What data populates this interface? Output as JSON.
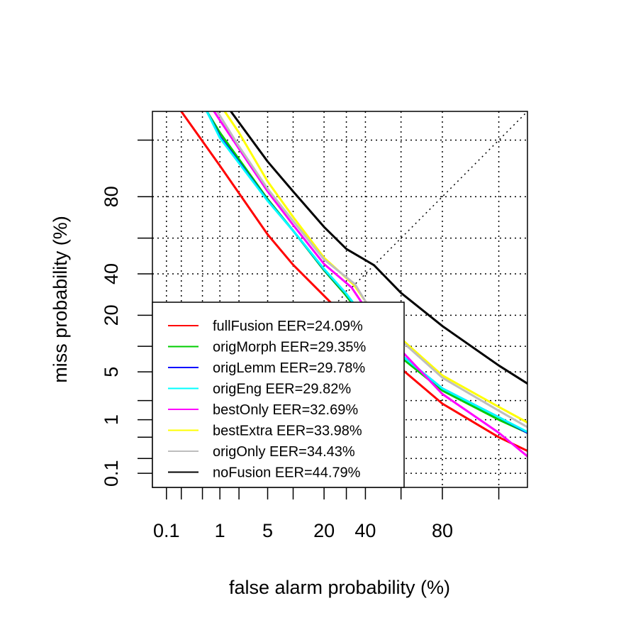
{
  "chart_data": {
    "type": "line",
    "title": "",
    "xlabel": "false alarm probability (%)",
    "ylabel": "miss probability (%)",
    "x_scale": "probit",
    "y_scale": "probit",
    "xlim": [
      0.05,
      98
    ],
    "ylim": [
      0.05,
      98
    ],
    "x_ticks": [
      0.1,
      1,
      5,
      20,
      40,
      80
    ],
    "y_ticks": [
      0.1,
      1,
      5,
      20,
      40,
      80
    ],
    "x_gridlines": [
      0.1,
      0.2,
      0.5,
      1,
      2,
      5,
      10,
      20,
      30,
      40,
      60,
      80,
      95
    ],
    "y_gridlines": [
      0.1,
      0.2,
      0.5,
      1,
      2,
      5,
      10,
      20,
      40,
      60,
      80,
      95
    ],
    "grid": true,
    "eer_diagonal": true,
    "legend_position": "bottom-left",
    "series": [
      {
        "name": "fullFusion EER=24.09%",
        "color": "#ff0000",
        "points": [
          [
            0.2,
            98
          ],
          [
            1,
            90
          ],
          [
            5,
            62
          ],
          [
            10,
            45
          ],
          [
            24.09,
            24.09
          ],
          [
            40,
            13
          ],
          [
            60,
            5.5
          ],
          [
            80,
            1.8
          ],
          [
            95,
            0.5
          ],
          [
            98,
            0.28
          ]
        ]
      },
      {
        "name": "origMorph EER=29.35%",
        "color": "#00cd00",
        "points": [
          [
            0.6,
            98
          ],
          [
            1,
            96
          ],
          [
            5,
            79
          ],
          [
            10,
            64
          ],
          [
            20,
            42
          ],
          [
            29.35,
            29.35
          ],
          [
            40,
            18
          ],
          [
            60,
            7.5
          ],
          [
            80,
            2.8
          ],
          [
            95,
            1
          ],
          [
            98,
            0.6
          ]
        ]
      },
      {
        "name": "origLemm EER=29.78%",
        "color": "#0000ff",
        "points": [
          [
            0.6,
            98
          ],
          [
            1,
            95.5
          ],
          [
            5,
            78.5
          ],
          [
            10,
            64
          ],
          [
            20,
            42.5
          ],
          [
            29.78,
            29.78
          ],
          [
            40,
            18.5
          ],
          [
            60,
            8
          ],
          [
            80,
            3
          ],
          [
            95,
            1.1
          ],
          [
            98,
            0.6
          ]
        ]
      },
      {
        "name": "origEng EER=29.82%",
        "color": "#00ffff",
        "points": [
          [
            0.6,
            98
          ],
          [
            1,
            95.3
          ],
          [
            5,
            78.3
          ],
          [
            10,
            64
          ],
          [
            20,
            42.7
          ],
          [
            29.82,
            29.82
          ],
          [
            40,
            18.7
          ],
          [
            60,
            8
          ],
          [
            80,
            3
          ],
          [
            95,
            1.1
          ],
          [
            98,
            0.62
          ]
        ]
      },
      {
        "name": "bestOnly EER=32.69%",
        "color": "#ff00ff",
        "points": [
          [
            0.8,
            98
          ],
          [
            1,
            97.3
          ],
          [
            5,
            82
          ],
          [
            10,
            67
          ],
          [
            20,
            45.5
          ],
          [
            32.69,
            32.69
          ],
          [
            40,
            23
          ],
          [
            60,
            9
          ],
          [
            80,
            2.5
          ],
          [
            95,
            0.6
          ],
          [
            98,
            0.22
          ]
        ]
      },
      {
        "name": "bestExtra EER=33.98%",
        "color": "#ffff00",
        "points": [
          [
            1.2,
            98
          ],
          [
            2,
            96
          ],
          [
            5,
            85.5
          ],
          [
            10,
            71
          ],
          [
            20,
            49
          ],
          [
            33.98,
            33.98
          ],
          [
            40,
            26
          ],
          [
            60,
            12
          ],
          [
            80,
            4.5
          ],
          [
            95,
            1.6
          ],
          [
            98,
            0.9
          ]
        ]
      },
      {
        "name": "origOnly EER=34.43%",
        "color": "#bebebe",
        "points": [
          [
            0.9,
            98
          ],
          [
            2,
            94
          ],
          [
            5,
            83
          ],
          [
            10,
            69
          ],
          [
            20,
            48
          ],
          [
            34.43,
            34.43
          ],
          [
            40,
            26
          ],
          [
            60,
            11.5
          ],
          [
            80,
            4.2
          ],
          [
            95,
            1.4
          ],
          [
            98,
            0.75
          ]
        ]
      },
      {
        "name": "noFusion EER=44.79%",
        "color": "#000000",
        "points": [
          [
            1.5,
            98
          ],
          [
            5,
            91
          ],
          [
            10,
            82
          ],
          [
            20,
            66
          ],
          [
            30,
            54
          ],
          [
            44.79,
            44.79
          ],
          [
            60,
            30
          ],
          [
            80,
            16
          ],
          [
            95,
            6
          ],
          [
            98,
            3.5
          ]
        ]
      }
    ]
  }
}
